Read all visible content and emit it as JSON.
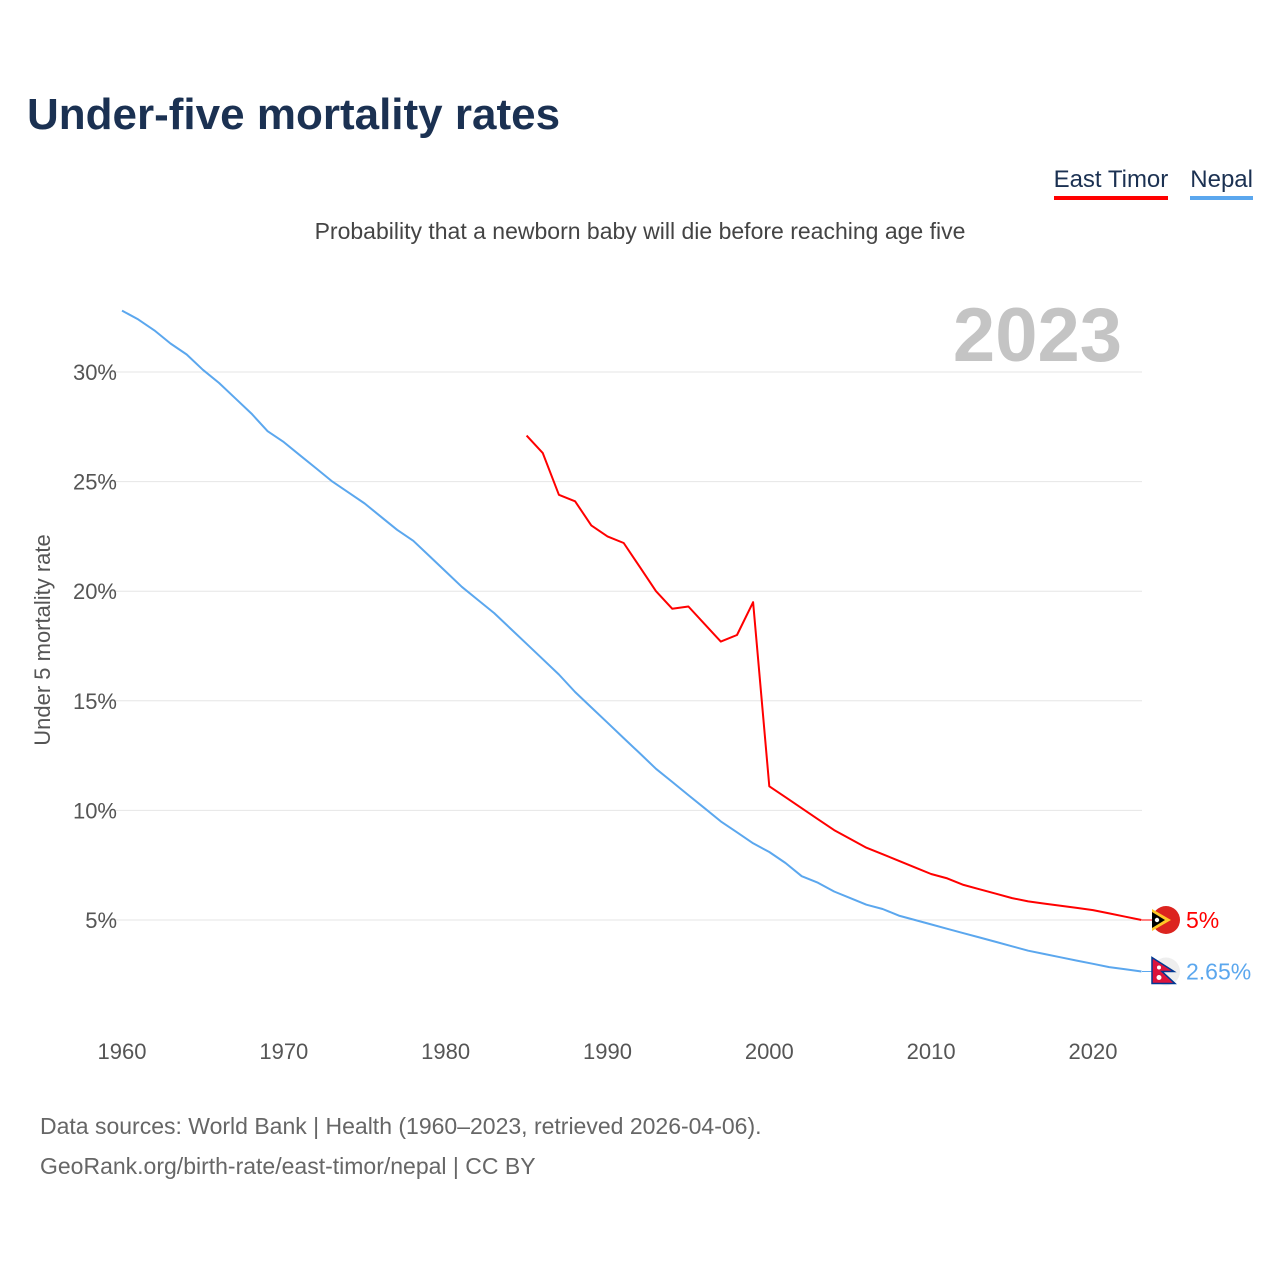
{
  "title": "Under-five mortality rates",
  "subtitle": "Probability that a newborn baby will die before reaching age five",
  "source_line1": "Data sources: World Bank | Health (1960–2023, retrieved 2026-04-06).",
  "source_line2": "GeoRank.org/birth-rate/east-timor/nepal | CC BY",
  "chart_data": {
    "type": "line",
    "title": "Under-five mortality rates",
    "ylabel": "Under 5 mortality rate",
    "xlabel": "",
    "year_label": "2023",
    "xlim": [
      1960,
      2023
    ],
    "ylim": [
      0,
      33
    ],
    "x_ticks": [
      "1960",
      "1970",
      "1980",
      "1990",
      "2000",
      "2010",
      "2020"
    ],
    "y_ticks": [
      {
        "v": 5,
        "label": "5%"
      },
      {
        "v": 10,
        "label": "10%"
      },
      {
        "v": 15,
        "label": "15%"
      },
      {
        "v": 20,
        "label": "20%"
      },
      {
        "v": 25,
        "label": "25%"
      },
      {
        "v": 30,
        "label": "30%"
      }
    ],
    "legend_position": "top-right",
    "series": [
      {
        "name": "East Timor",
        "color": "#ff0000",
        "end_label": "5%",
        "flag": "east-timor-flag",
        "start": 1985,
        "values": [
          27.1,
          26.3,
          24.4,
          24.1,
          23.0,
          22.5,
          22.2,
          21.1,
          20.0,
          19.2,
          19.3,
          18.5,
          17.7,
          18.0,
          19.5,
          11.1,
          10.6,
          10.1,
          9.6,
          9.1,
          8.7,
          8.3,
          8.0,
          7.7,
          7.4,
          7.1,
          6.9,
          6.6,
          6.4,
          6.2,
          6.0,
          5.85,
          5.75,
          5.65,
          5.55,
          5.45,
          5.3,
          5.15,
          5.0
        ]
      },
      {
        "name": "Nepal",
        "color": "#5ba7ee",
        "end_label": "2.65%",
        "flag": "nepal-flag",
        "start": 1960,
        "values": [
          32.8,
          32.4,
          31.9,
          31.3,
          30.8,
          30.1,
          29.5,
          28.8,
          28.1,
          27.3,
          26.8,
          26.2,
          25.6,
          25.0,
          24.5,
          24.0,
          23.4,
          22.8,
          22.3,
          21.6,
          20.9,
          20.2,
          19.6,
          19.0,
          18.3,
          17.6,
          16.9,
          16.2,
          15.4,
          14.7,
          14.0,
          13.3,
          12.6,
          11.9,
          11.3,
          10.7,
          10.1,
          9.5,
          9.0,
          8.5,
          8.1,
          7.6,
          7.0,
          6.7,
          6.3,
          6.0,
          5.7,
          5.5,
          5.2,
          5.0,
          4.8,
          4.6,
          4.4,
          4.2,
          4.0,
          3.8,
          3.6,
          3.45,
          3.3,
          3.15,
          3.0,
          2.85,
          2.75,
          2.65
        ]
      }
    ]
  }
}
